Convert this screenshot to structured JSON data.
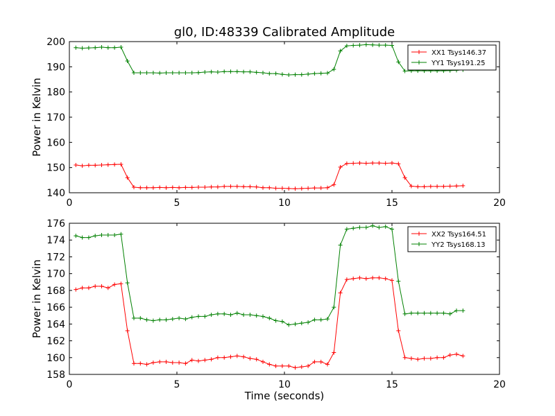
{
  "chart_data": [
    {
      "type": "line",
      "title": "gl0, ID:48339 Calibrated Amplitude",
      "xlabel": "",
      "ylabel": "Power in Kelvin",
      "xlim": [
        0,
        20
      ],
      "ylim": [
        140,
        200
      ],
      "xticks": [
        0,
        5,
        10,
        15,
        20
      ],
      "yticks": [
        140,
        150,
        160,
        170,
        180,
        190,
        200
      ],
      "xtick_labels": [
        "0",
        "5",
        "10",
        "15",
        "20"
      ],
      "ytick_labels": [
        "140",
        "150",
        "160",
        "170",
        "180",
        "190",
        "200"
      ],
      "legend": "top-right",
      "x": [
        0.3,
        0.6,
        0.9,
        1.2,
        1.5,
        1.8,
        2.1,
        2.4,
        2.7,
        3.0,
        3.3,
        3.6,
        3.9,
        4.2,
        4.5,
        4.8,
        5.1,
        5.4,
        5.7,
        6.0,
        6.3,
        6.6,
        6.9,
        7.2,
        7.5,
        7.8,
        8.1,
        8.4,
        8.7,
        9.0,
        9.3,
        9.6,
        9.9,
        10.2,
        10.5,
        10.8,
        11.1,
        11.4,
        11.7,
        12.0,
        12.3,
        12.6,
        12.9,
        13.2,
        13.5,
        13.8,
        14.1,
        14.4,
        14.7,
        15.0,
        15.3,
        15.6,
        15.9,
        16.2,
        16.5,
        16.8,
        17.1,
        17.4,
        17.7,
        18.0,
        18.3
      ],
      "series": [
        {
          "name": "XX1 Tsys146.37",
          "color": "#ff0000",
          "values": [
            151.0,
            150.7,
            150.9,
            150.9,
            151.0,
            151.1,
            151.2,
            151.3,
            146.0,
            142.2,
            142.0,
            142.0,
            142.0,
            142.1,
            142.0,
            142.1,
            142.0,
            142.1,
            142.1,
            142.2,
            142.2,
            142.3,
            142.3,
            142.5,
            142.5,
            142.5,
            142.4,
            142.4,
            142.3,
            142.0,
            142.0,
            141.8,
            141.8,
            141.7,
            141.6,
            141.7,
            141.8,
            141.9,
            141.9,
            142.0,
            143.2,
            150.2,
            151.6,
            151.7,
            151.8,
            151.7,
            151.8,
            151.8,
            151.7,
            151.8,
            151.5,
            146.0,
            142.6,
            142.4,
            142.4,
            142.5,
            142.5,
            142.5,
            142.6,
            142.7,
            142.8
          ]
        },
        {
          "name": "YY1 Tsys191.25",
          "color": "#008000",
          "values": [
            197.6,
            197.4,
            197.5,
            197.6,
            197.8,
            197.6,
            197.6,
            197.8,
            192.3,
            187.6,
            187.6,
            187.6,
            187.6,
            187.5,
            187.6,
            187.6,
            187.6,
            187.6,
            187.6,
            187.7,
            187.9,
            188.0,
            187.9,
            188.1,
            188.1,
            188.1,
            188.0,
            188.0,
            187.8,
            187.6,
            187.3,
            187.3,
            187.0,
            186.8,
            186.9,
            186.9,
            187.1,
            187.3,
            187.4,
            187.5,
            189.0,
            196.3,
            198.3,
            198.5,
            198.6,
            198.8,
            198.7,
            198.6,
            198.6,
            198.5,
            191.9,
            188.3,
            188.4,
            188.4,
            188.4,
            188.4,
            188.4,
            188.4,
            188.5,
            188.6,
            188.8
          ]
        }
      ]
    },
    {
      "type": "line",
      "title": "",
      "xlabel": "Time (seconds)",
      "ylabel": "Power in Kelvin",
      "xlim": [
        0,
        20
      ],
      "ylim": [
        158,
        176
      ],
      "xticks": [
        0,
        5,
        10,
        15,
        20
      ],
      "yticks": [
        158,
        160,
        162,
        164,
        166,
        168,
        170,
        172,
        174,
        176
      ],
      "xtick_labels": [
        "0",
        "5",
        "10",
        "15",
        "20"
      ],
      "ytick_labels": [
        "158",
        "160",
        "162",
        "164",
        "166",
        "168",
        "170",
        "172",
        "174",
        "176"
      ],
      "legend": "top-right",
      "x": [
        0.3,
        0.6,
        0.9,
        1.2,
        1.5,
        1.8,
        2.1,
        2.4,
        2.7,
        3.0,
        3.3,
        3.6,
        3.9,
        4.2,
        4.5,
        4.8,
        5.1,
        5.4,
        5.7,
        6.0,
        6.3,
        6.6,
        6.9,
        7.2,
        7.5,
        7.8,
        8.1,
        8.4,
        8.7,
        9.0,
        9.3,
        9.6,
        9.9,
        10.2,
        10.5,
        10.8,
        11.1,
        11.4,
        11.7,
        12.0,
        12.3,
        12.6,
        12.9,
        13.2,
        13.5,
        13.8,
        14.1,
        14.4,
        14.7,
        15.0,
        15.3,
        15.6,
        15.9,
        16.2,
        16.5,
        16.8,
        17.1,
        17.4,
        17.7,
        18.0,
        18.3
      ],
      "series": [
        {
          "name": "XX2 Tsys164.51",
          "color": "#ff0000",
          "values": [
            168.1,
            168.3,
            168.3,
            168.5,
            168.5,
            168.3,
            168.7,
            168.8,
            163.2,
            159.3,
            159.3,
            159.2,
            159.4,
            159.5,
            159.5,
            159.4,
            159.4,
            159.3,
            159.7,
            159.6,
            159.7,
            159.8,
            160.0,
            160.0,
            160.1,
            160.2,
            160.1,
            159.9,
            159.8,
            159.5,
            159.2,
            159.0,
            159.0,
            159.0,
            158.8,
            158.9,
            159.0,
            159.5,
            159.5,
            159.2,
            160.6,
            167.7,
            169.3,
            169.4,
            169.5,
            169.4,
            169.5,
            169.5,
            169.4,
            169.2,
            163.2,
            160.0,
            159.9,
            159.8,
            159.9,
            159.9,
            160.0,
            160.0,
            160.3,
            160.4,
            160.2
          ]
        },
        {
          "name": "YY2 Tsys168.13",
          "color": "#008000",
          "values": [
            174.5,
            174.3,
            174.3,
            174.5,
            174.6,
            174.6,
            174.6,
            174.7,
            168.9,
            164.7,
            164.7,
            164.5,
            164.4,
            164.5,
            164.5,
            164.6,
            164.7,
            164.6,
            164.8,
            164.9,
            164.9,
            165.1,
            165.2,
            165.2,
            165.1,
            165.3,
            165.1,
            165.1,
            165.0,
            164.9,
            164.7,
            164.4,
            164.3,
            163.9,
            164.0,
            164.1,
            164.2,
            164.5,
            164.5,
            164.6,
            166.0,
            173.4,
            175.3,
            175.4,
            175.5,
            175.5,
            175.7,
            175.5,
            175.6,
            175.3,
            169.1,
            165.2,
            165.3,
            165.3,
            165.3,
            165.3,
            165.3,
            165.3,
            165.2,
            165.6,
            165.6
          ]
        }
      ]
    }
  ]
}
